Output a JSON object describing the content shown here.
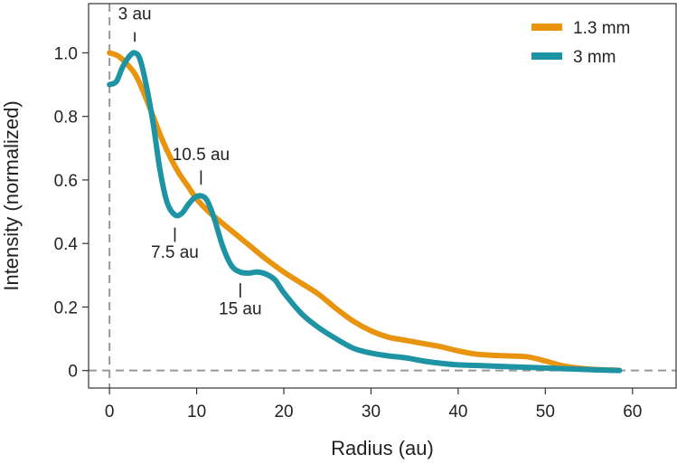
{
  "chart_data": {
    "type": "line",
    "title": "",
    "xlabel": "Radius (au)",
    "ylabel": "Intensity (normalized)",
    "xlim": [
      -2.4,
      65
    ],
    "ylim": [
      -0.055,
      1.155
    ],
    "x_ticks": [
      0,
      10,
      20,
      30,
      40,
      50,
      60
    ],
    "x_tick_labels": [
      "0",
      "10",
      "20",
      "30",
      "40",
      "50",
      "60"
    ],
    "y_ticks": [
      0,
      0.2,
      0.4,
      0.6,
      0.8,
      1.0
    ],
    "y_tick_labels": [
      "0",
      "0.2",
      "0.4",
      "0.6",
      "0.8",
      "1.0"
    ],
    "grid": false,
    "legend_position": "top-right",
    "reference_lines": [
      {
        "axis": "x",
        "value": 0,
        "style": "dashed",
        "color": "#999999"
      },
      {
        "axis": "y",
        "value": 0,
        "style": "dashed",
        "color": "#999999"
      }
    ],
    "series": [
      {
        "name": "1.3 mm",
        "color": "#E8940E",
        "points": [
          [
            0,
            1.0
          ],
          [
            1,
            0.99
          ],
          [
            2,
            0.965
          ],
          [
            3,
            0.93
          ],
          [
            4,
            0.87
          ],
          [
            5,
            0.8
          ],
          [
            6,
            0.73
          ],
          [
            7,
            0.67
          ],
          [
            8,
            0.62
          ],
          [
            9,
            0.58
          ],
          [
            10,
            0.54
          ],
          [
            11,
            0.51
          ],
          [
            12,
            0.485
          ],
          [
            14,
            0.44
          ],
          [
            16,
            0.395
          ],
          [
            18,
            0.35
          ],
          [
            20,
            0.31
          ],
          [
            22,
            0.275
          ],
          [
            24,
            0.24
          ],
          [
            26,
            0.195
          ],
          [
            28,
            0.155
          ],
          [
            30,
            0.125
          ],
          [
            32,
            0.105
          ],
          [
            34,
            0.095
          ],
          [
            36,
            0.085
          ],
          [
            38,
            0.075
          ],
          [
            40,
            0.062
          ],
          [
            42,
            0.052
          ],
          [
            44,
            0.048
          ],
          [
            46,
            0.046
          ],
          [
            48,
            0.043
          ],
          [
            50,
            0.03
          ],
          [
            52,
            0.015
          ],
          [
            54,
            0.007
          ],
          [
            56,
            0.003
          ],
          [
            58.5,
            0.001
          ]
        ]
      },
      {
        "name": "3 mm",
        "color": "#1E93A3",
        "points": [
          [
            0,
            0.9
          ],
          [
            0.8,
            0.91
          ],
          [
            1.5,
            0.955
          ],
          [
            2.3,
            0.99
          ],
          [
            2.9,
            1.0
          ],
          [
            3.5,
            0.98
          ],
          [
            4.2,
            0.9
          ],
          [
            5,
            0.78
          ],
          [
            5.8,
            0.63
          ],
          [
            6.6,
            0.53
          ],
          [
            7.5,
            0.49
          ],
          [
            8.3,
            0.495
          ],
          [
            9.1,
            0.525
          ],
          [
            9.8,
            0.545
          ],
          [
            10.5,
            0.55
          ],
          [
            11.2,
            0.535
          ],
          [
            12,
            0.48
          ],
          [
            13,
            0.39
          ],
          [
            14,
            0.33
          ],
          [
            15,
            0.31
          ],
          [
            16,
            0.307
          ],
          [
            17,
            0.31
          ],
          [
            18,
            0.303
          ],
          [
            19,
            0.285
          ],
          [
            20,
            0.245
          ],
          [
            22,
            0.18
          ],
          [
            24,
            0.135
          ],
          [
            26,
            0.1
          ],
          [
            28,
            0.07
          ],
          [
            30,
            0.055
          ],
          [
            32,
            0.046
          ],
          [
            34,
            0.04
          ],
          [
            36,
            0.03
          ],
          [
            38,
            0.023
          ],
          [
            40,
            0.018
          ],
          [
            42,
            0.016
          ],
          [
            44,
            0.014
          ],
          [
            46,
            0.012
          ],
          [
            48,
            0.01
          ],
          [
            50,
            0.008
          ],
          [
            52,
            0.006
          ],
          [
            54,
            0.004
          ],
          [
            56,
            0.002
          ],
          [
            58.5,
            0.0
          ]
        ]
      }
    ],
    "annotations": [
      {
        "text": "3 au",
        "x": 2.9,
        "tick_from": 1.035,
        "tick_to": 1.065,
        "label_y": 1.105,
        "anchor": "middle"
      },
      {
        "text": "10.5 au",
        "x": 10.5,
        "tick_from": 0.585,
        "tick_to": 0.63,
        "label_y": 0.662,
        "anchor": "middle"
      },
      {
        "text": "7.5 au",
        "x": 7.5,
        "tick_from": 0.45,
        "tick_to": 0.405,
        "label_y": 0.355,
        "anchor": "middle"
      },
      {
        "text": "15 au",
        "x": 15.0,
        "tick_from": 0.275,
        "tick_to": 0.23,
        "label_y": 0.177,
        "anchor": "middle"
      }
    ]
  }
}
